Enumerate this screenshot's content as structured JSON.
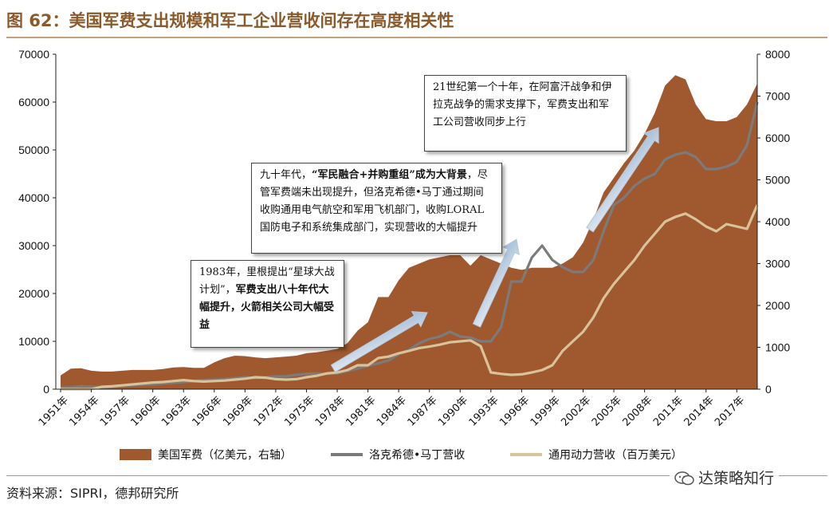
{
  "title": "图 62：美国军费支出规模和军工企业营收间存在高度相关性",
  "source": "资料来源：SIPRI，德邦研究所",
  "watermark": "达策略知行",
  "annotations": {
    "a1": {
      "plain1": "1983年，里根提出“星球大战计划”，",
      "bold1": "军费支出八十年代大幅提升，火箭相关公司大幅受益",
      "plain2": ""
    },
    "a2": {
      "plain1": "九十年代，",
      "bold1": "“军民融合+并购重组”成为大背景",
      "plain2": "，尽管军费端未出现提升，但洛克希德•马丁通过期间收购通用电气航空和军用飞机部门，收购LORAL国防电子和系统集成部门，实现营收的大幅提升"
    },
    "a3": {
      "plain1": "21世纪第一个十年，在阿富汗战争和伊拉克战争的需求支撑下，军费支出和军工公司营收同步上行",
      "bold1": "",
      "plain2": ""
    }
  },
  "chart_data": {
    "type": "area+line",
    "years": [
      1951,
      1952,
      1953,
      1954,
      1955,
      1956,
      1957,
      1958,
      1959,
      1960,
      1961,
      1962,
      1963,
      1964,
      1965,
      1966,
      1967,
      1968,
      1969,
      1970,
      1971,
      1972,
      1973,
      1974,
      1975,
      1976,
      1977,
      1978,
      1979,
      1980,
      1981,
      1982,
      1983,
      1984,
      1985,
      1986,
      1987,
      1988,
      1989,
      1990,
      1991,
      1992,
      1993,
      1994,
      1995,
      1996,
      1997,
      1998,
      1999,
      2000,
      2001,
      2002,
      2003,
      2004,
      2005,
      2006,
      2007,
      2008,
      2009,
      2010,
      2011,
      2012,
      2013,
      2014,
      2015,
      2016,
      2017,
      2018,
      2019
    ],
    "x_tick_labels": [
      "1951年",
      "1954年",
      "1957年",
      "1960年",
      "1963年",
      "1966年",
      "1969年",
      "1972年",
      "1975年",
      "1978年",
      "1981年",
      "1984年",
      "1987年",
      "1990年",
      "1993年",
      "1996年",
      "1999年",
      "2002年",
      "2005年",
      "2008年",
      "2011年",
      "2014年",
      "2017年"
    ],
    "left_axis": {
      "ylim": [
        0,
        70000
      ],
      "ticks": [
        "0",
        "10000",
        "20000",
        "30000",
        "40000",
        "50000",
        "60000",
        "70000"
      ]
    },
    "right_axis": {
      "ylim": [
        0,
        8000
      ],
      "ticks": [
        "0",
        "1000",
        "2000",
        "3000",
        "4000",
        "5000",
        "6000",
        "7000",
        "8000"
      ]
    },
    "series": [
      {
        "name": "美国军费（亿美元，右轴）",
        "axis": "right",
        "style": "area",
        "color": "#a0582f",
        "values": [
          330,
          490,
          500,
          440,
          420,
          420,
          440,
          460,
          460,
          460,
          480,
          520,
          530,
          510,
          510,
          640,
          740,
          800,
          790,
          760,
          740,
          760,
          780,
          800,
          860,
          880,
          920,
          960,
          1100,
          1400,
          1600,
          2200,
          2200,
          2600,
          2900,
          3000,
          3100,
          3150,
          3200,
          3200,
          2950,
          3200,
          3100,
          3000,
          2900,
          2850,
          2900,
          2900,
          2900,
          3000,
          3150,
          3500,
          4050,
          4700,
          5050,
          5400,
          5700,
          6100,
          6600,
          7250,
          7500,
          7400,
          6800,
          6450,
          6400,
          6400,
          6500,
          6800,
          7300
        ]
      },
      {
        "name": "洛克希德•马丁营收",
        "axis": "left",
        "style": "line",
        "color": "#7b7b7b",
        "values": [
          300,
          400,
          600,
          500,
          400,
          500,
          600,
          800,
          900,
          1000,
          1200,
          1300,
          1500,
          1700,
          1900,
          2000,
          2100,
          2300,
          2500,
          2300,
          2500,
          2700,
          2700,
          3000,
          3200,
          3300,
          3200,
          3300,
          3800,
          4300,
          4900,
          5400,
          6000,
          7300,
          8200,
          9600,
          10500,
          11000,
          12000,
          11000,
          10800,
          10000,
          10000,
          13000,
          22500,
          22500,
          27500,
          30000,
          27000,
          25500,
          24500,
          24500,
          27000,
          33000,
          38500,
          40000,
          42500,
          44000,
          45000,
          48000,
          49000,
          49500,
          48500,
          46000,
          46000,
          46500,
          47500,
          51000,
          60000
        ]
      },
      {
        "name": "通用动力营收（百万美元）",
        "axis": "left",
        "style": "line",
        "color": "#d8c39a",
        "values": [
          0,
          0,
          0,
          0,
          500,
          600,
          800,
          1000,
          1200,
          1400,
          1500,
          1700,
          1900,
          1700,
          1600,
          1700,
          1800,
          2000,
          2200,
          2500,
          2400,
          2100,
          2000,
          2100,
          2500,
          2800,
          3300,
          3500,
          4000,
          5000,
          5000,
          6500,
          6800,
          7500,
          8000,
          8600,
          8900,
          9300,
          9800,
          10000,
          10200,
          9000,
          3500,
          3200,
          3000,
          3100,
          3500,
          4000,
          5000,
          8000,
          10000,
          12000,
          15000,
          19000,
          22000,
          24500,
          27000,
          30000,
          32500,
          35000,
          36000,
          36700,
          35500,
          34000,
          33000,
          34500,
          34000,
          33500,
          38500
        ]
      }
    ]
  }
}
